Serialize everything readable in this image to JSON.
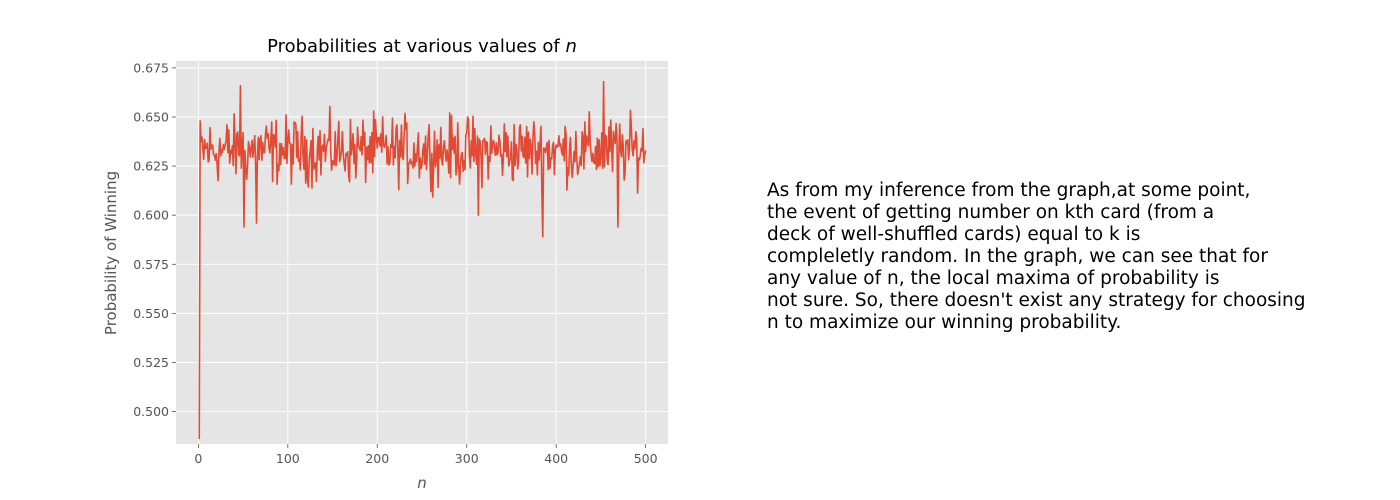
{
  "chart_data": {
    "type": "line",
    "title": "Probabilities at various values of",
    "title_var": "n",
    "xlabel": "n",
    "ylabel": "Probability of Winning",
    "xlim": [
      -25,
      525
    ],
    "ylim": [
      0.4835,
      0.6785
    ],
    "x_ticks": [
      0,
      100,
      200,
      300,
      400,
      500
    ],
    "y_ticks": [
      0.5,
      0.525,
      0.55,
      0.575,
      0.6,
      0.625,
      0.65,
      0.675
    ],
    "y_tick_labels": [
      "0.500",
      "0.525",
      "0.550",
      "0.575",
      "0.600",
      "0.625",
      "0.650",
      "0.675"
    ],
    "grid": true,
    "style": "ggplot",
    "series": [
      {
        "color": "#E24A33",
        "x_start": 1,
        "x_step": 1,
        "summary": {
          "min": 0.486,
          "max": 0.668,
          "mean": 0.633
        },
        "key_points": [
          {
            "x": 1,
            "y": 0.486
          },
          {
            "x": 2,
            "y": 0.648
          },
          {
            "x": 47,
            "y": 0.666
          },
          {
            "x": 51,
            "y": 0.594
          },
          {
            "x": 65,
            "y": 0.596
          },
          {
            "x": 313,
            "y": 0.6
          },
          {
            "x": 385,
            "y": 0.589
          },
          {
            "x": 453,
            "y": 0.668
          },
          {
            "x": 469,
            "y": 0.594
          },
          {
            "x": 500,
            "y": 0.633
          }
        ]
      }
    ]
  },
  "commentary": {
    "lines": [
      "As from my inference from the graph,at some point,",
      "the event of getting number on kth card (from a",
      "deck of well-shuffled cards) equal to k is",
      "compleletly random. In the graph, we can see that for",
      "any value of n, the local maxima of probability is",
      "not sure. So, there doesn't exist any strategy for choosing",
      "n to maximize our winning probability."
    ]
  }
}
